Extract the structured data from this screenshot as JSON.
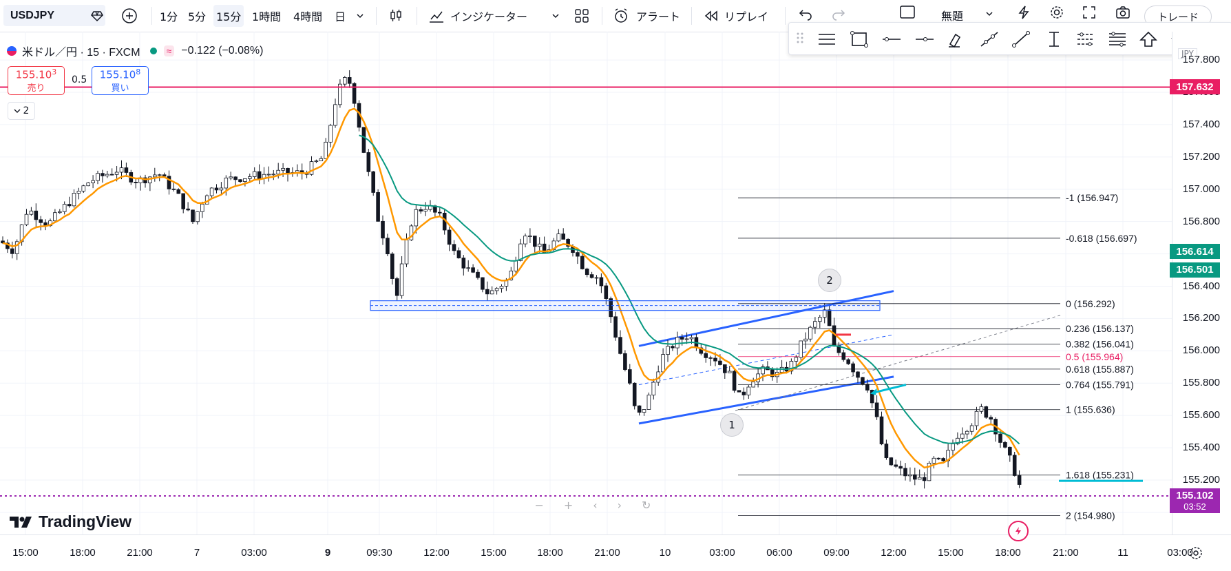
{
  "toolbar": {
    "symbol": "USDJPY",
    "intervals": [
      "1分",
      "5分",
      "15分",
      "1時間",
      "4時間",
      "日"
    ],
    "active_interval": "15分",
    "indicators_label": "インジケーター",
    "alert_label": "アラート",
    "replay_label": "リプレイ",
    "layout_name": "無題",
    "trade_label": "トレード"
  },
  "legend": {
    "title": "米ドル／円 · 15 · FXCM",
    "change": "−0.122 (−0.08%)",
    "sell_price_main": "155.10",
    "sell_price_small": "3",
    "sell_label": "売り",
    "spread": "0.5",
    "buy_price_main": "155.10",
    "buy_price_small": "8",
    "buy_label": "買い",
    "indicator_count": "2"
  },
  "price_axis": {
    "ticks": [
      "157.600",
      "157.400",
      "157.200",
      "157.000",
      "156.800",
      "156.400",
      "156.200",
      "156.000",
      "155.800",
      "155.600",
      "155.400",
      "155.200"
    ],
    "top_partial": "157.800",
    "unit_badge": "JPY"
  },
  "price_tags": [
    {
      "value": "157.632",
      "color": "#e91e63"
    },
    {
      "value": "156.614",
      "color": "#089981"
    },
    {
      "value": "156.501",
      "color": "#089981"
    },
    {
      "value": "155.102",
      "color": "#9c27b0",
      "countdown": "03:52"
    }
  ],
  "time_axis": [
    "15:00",
    "18:00",
    "21:00",
    "7",
    "03:00",
    "9",
    "09:30",
    "12:00",
    "15:00",
    "18:00",
    "21:00",
    "10",
    "03:00",
    "06:00",
    "09:00",
    "12:00",
    "15:00",
    "18:00",
    "21:00",
    "11",
    "03:00"
  ],
  "fibonacci": [
    {
      "label": "-1 (156.947)",
      "price": 156.947
    },
    {
      "label": "-0.618 (156.697)",
      "price": 156.697
    },
    {
      "label": "0 (156.292)",
      "price": 156.292
    },
    {
      "label": "0.236 (156.137)",
      "price": 156.137
    },
    {
      "label": "0.382 (156.041)",
      "price": 156.041
    },
    {
      "label": "0.5 (155.964)",
      "price": 155.964,
      "highlight": true
    },
    {
      "label": "0.618 (155.887)",
      "price": 155.887
    },
    {
      "label": "0.764 (155.791)",
      "price": 155.791
    },
    {
      "label": "1 (155.636)",
      "price": 155.636
    },
    {
      "label": "1.618 (155.231)",
      "price": 155.231
    },
    {
      "label": "2 (154.980)",
      "price": 154.98
    }
  ],
  "markers": [
    "1",
    "2"
  ],
  "watermark": "TradingView",
  "colors": {
    "bull": "#ffffff",
    "bear": "#131722",
    "ema_fast": "#ff9800",
    "ema_slow": "#089981",
    "channel": "#2962ff",
    "resistance": "#e91e63",
    "current": "#9c27b0"
  }
}
